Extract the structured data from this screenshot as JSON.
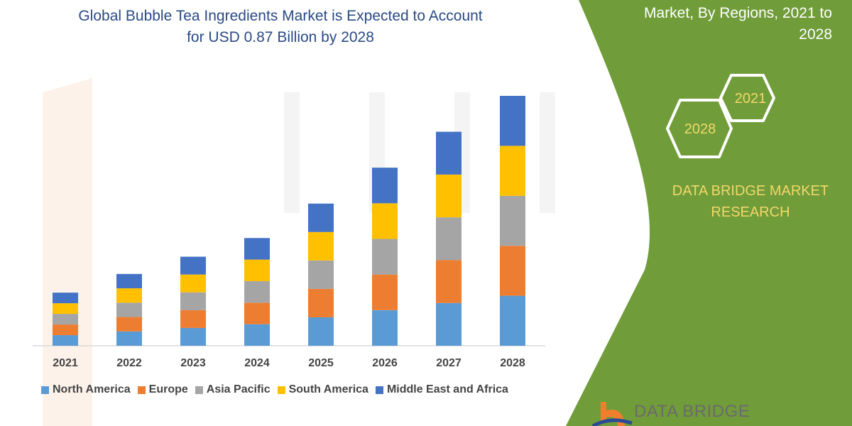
{
  "header": {
    "title_line1": "Global Bubble Tea Ingredients Market is Expected to Account",
    "title_line2": "for USD 0.87 Billion by 2028"
  },
  "side_panel": {
    "title_line1": "Market, By Regions, 2021 to",
    "title_line2": "2028",
    "hex_years": [
      "2021",
      "2028"
    ],
    "brand_line1": "DATA BRIDGE MARKET",
    "brand_line2": "RESEARCH",
    "logo_text": "DATA BRIDGE",
    "panel_color": "#709c3a",
    "brand_color": "#f2d86a"
  },
  "chart_data": {
    "type": "bar",
    "stacked": true,
    "categories": [
      "2021",
      "2022",
      "2023",
      "2024",
      "2025",
      "2026",
      "2027",
      "2028"
    ],
    "series": [
      {
        "name": "North America",
        "color": "#5b9bd5",
        "values": [
          0.037,
          0.05,
          0.062,
          0.075,
          0.099,
          0.124,
          0.149,
          0.174
        ]
      },
      {
        "name": "Europe",
        "color": "#ed7d31",
        "values": [
          0.037,
          0.05,
          0.062,
          0.075,
          0.099,
          0.124,
          0.149,
          0.174
        ]
      },
      {
        "name": "Asia Pacific",
        "color": "#a5a5a5",
        "values": [
          0.037,
          0.05,
          0.062,
          0.075,
          0.099,
          0.124,
          0.149,
          0.174
        ]
      },
      {
        "name": "South America",
        "color": "#ffc000",
        "values": [
          0.037,
          0.05,
          0.062,
          0.075,
          0.099,
          0.124,
          0.149,
          0.174
        ]
      },
      {
        "name": "Middle East and Africa",
        "color": "#4472c4",
        "values": [
          0.037,
          0.05,
          0.062,
          0.075,
          0.099,
          0.124,
          0.149,
          0.174
        ]
      }
    ],
    "y_axis_shown": false,
    "grid": false,
    "legend_position": "bottom"
  }
}
